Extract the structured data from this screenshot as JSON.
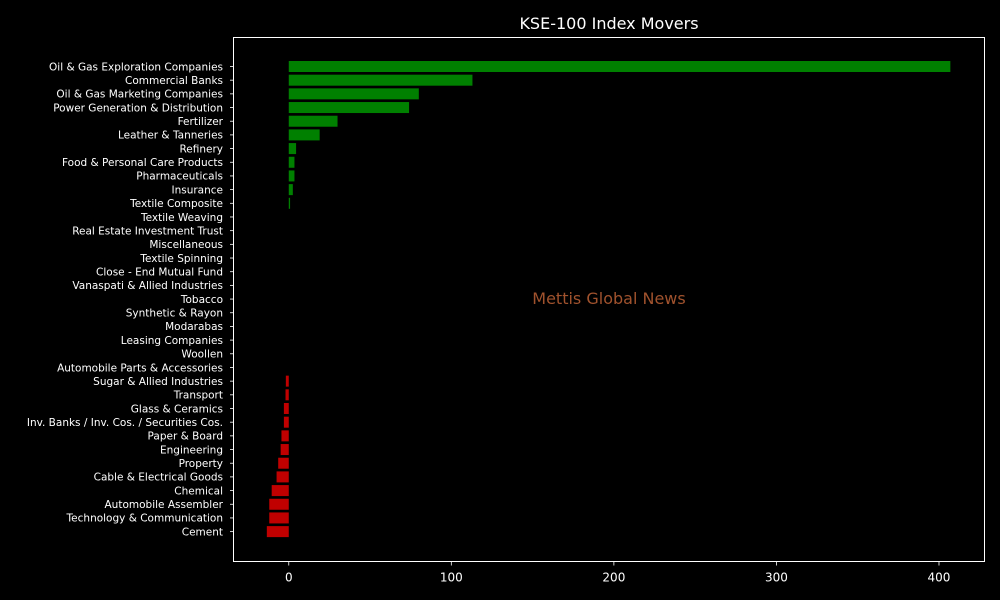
{
  "chart_data": {
    "type": "bar",
    "orientation": "horizontal",
    "title": "KSE-100 Index Movers",
    "watermark": "Mettis Global News",
    "xlim": [
      -34,
      428
    ],
    "xticks": [
      0,
      100,
      200,
      300,
      400
    ],
    "grid": false,
    "legend": "none",
    "categories": [
      "Oil & Gas Exploration Companies",
      "Commercial Banks",
      "Oil & Gas Marketing Companies",
      "Power Generation & Distribution",
      "Fertilizer",
      "Leather & Tanneries",
      "Refinery",
      "Food & Personal Care Products",
      "Pharmaceuticals",
      "Insurance",
      "Textile Composite",
      "Textile Weaving",
      "Real Estate Investment Trust",
      "Miscellaneous",
      "Textile Spinning",
      "Close - End Mutual Fund",
      "Vanaspati & Allied Industries",
      "Tobacco",
      "Synthetic & Rayon",
      "Modarabas",
      "Leasing Companies",
      "Woollen",
      "Automobile Parts & Accessories",
      "Sugar & Allied Industries",
      "Transport",
      "Glass & Ceramics",
      "Inv. Banks / Inv. Cos. / Securities Cos.",
      "Paper & Board",
      "Engineering",
      "Property",
      "Cable & Electrical Goods",
      "Chemical",
      "Automobile Assembler",
      "Technology & Communication",
      "Cement"
    ],
    "values": [
      407,
      113,
      80,
      74,
      30,
      19,
      4.5,
      3.5,
      3.5,
      2.5,
      0.8,
      0,
      0,
      0,
      0,
      0,
      0,
      0,
      0,
      0,
      0,
      0,
      0,
      -1.8,
      -2.0,
      -3.0,
      -3.0,
      -4.5,
      -5.0,
      -6.5,
      -7.5,
      -10.5,
      -12,
      -12,
      -13.5
    ],
    "colors": {
      "positive": "#008000",
      "negative": "#c00000",
      "background": "#000000",
      "text": "#ffffff",
      "watermark": "#a0522d"
    }
  }
}
